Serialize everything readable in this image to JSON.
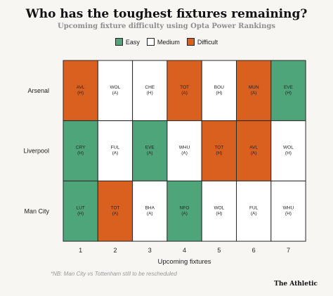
{
  "title": "Who has the toughest fixtures remaining?",
  "subtitle": "Upcoming fixture difficulty using Opta Power Rankings",
  "legend": {
    "easy": {
      "label": "Easy",
      "color": "#4fa57a"
    },
    "medium": {
      "label": "Medium",
      "color": "#ffffff"
    },
    "difficult": {
      "label": "Difficult",
      "color": "#d9601f"
    }
  },
  "footnote": "*NB: Man City vs Tottenham still to be rescheduled",
  "brand": "The Athletic",
  "chart_data": {
    "type": "heatmap",
    "title": "Who has the toughest fixtures remaining?",
    "xlabel": "Upcoming fixtures",
    "ylabel": "",
    "categories": [
      "1",
      "2",
      "3",
      "4",
      "5",
      "6",
      "7"
    ],
    "rows": [
      {
        "team": "Arsenal",
        "fixtures": [
          {
            "opp": "AVL",
            "venue": "(H)",
            "level": "difficult"
          },
          {
            "opp": "WOL",
            "venue": "(A)",
            "level": "medium"
          },
          {
            "opp": "CHE",
            "venue": "(H)",
            "level": "medium"
          },
          {
            "opp": "TOT",
            "venue": "(A)",
            "level": "difficult"
          },
          {
            "opp": "BOU",
            "venue": "(H)",
            "level": "medium"
          },
          {
            "opp": "MUN",
            "venue": "(A)",
            "level": "difficult"
          },
          {
            "opp": "EVE",
            "venue": "(H)",
            "level": "easy"
          }
        ]
      },
      {
        "team": "Liverpool",
        "fixtures": [
          {
            "opp": "CRY",
            "venue": "(H)",
            "level": "easy"
          },
          {
            "opp": "FUL",
            "venue": "(A)",
            "level": "medium"
          },
          {
            "opp": "EVE",
            "venue": "(A)",
            "level": "easy"
          },
          {
            "opp": "WHU",
            "venue": "(A)",
            "level": "medium"
          },
          {
            "opp": "TOT",
            "venue": "(H)",
            "level": "difficult"
          },
          {
            "opp": "AVL",
            "venue": "(A)",
            "level": "difficult"
          },
          {
            "opp": "WOL",
            "venue": "(H)",
            "level": "medium"
          }
        ]
      },
      {
        "team": "Man City",
        "fixtures": [
          {
            "opp": "LUT",
            "venue": "(H)",
            "level": "easy"
          },
          {
            "opp": "TOT",
            "venue": "(A)",
            "level": "difficult"
          },
          {
            "opp": "BHA",
            "venue": "(A)",
            "level": "medium"
          },
          {
            "opp": "NFO",
            "venue": "(A)",
            "level": "easy"
          },
          {
            "opp": "WOL",
            "venue": "(H)",
            "level": "medium"
          },
          {
            "opp": "FUL",
            "venue": "(A)",
            "level": "medium"
          },
          {
            "opp": "WHU",
            "venue": "(H)",
            "level": "medium"
          }
        ]
      }
    ],
    "grid": true,
    "legend_position": "top"
  }
}
